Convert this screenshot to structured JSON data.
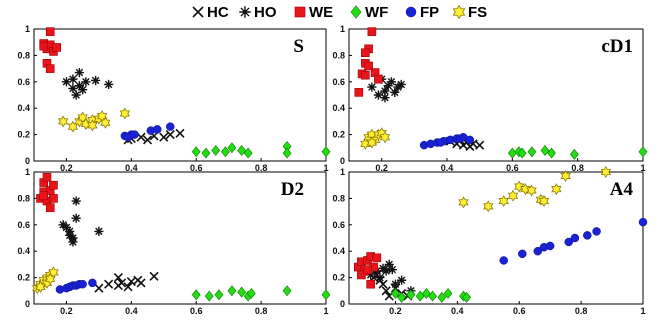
{
  "legend": [
    {
      "label": "HC",
      "marker": "x",
      "color": "#000000"
    },
    {
      "label": "HO",
      "marker": "asterisk",
      "color": "#000000"
    },
    {
      "label": "WE",
      "marker": "square",
      "color": "#e8141b"
    },
    {
      "label": "WF",
      "marker": "diamond",
      "color": "#22dd11"
    },
    {
      "label": "FP",
      "marker": "circle",
      "color": "#1a22d6"
    },
    {
      "label": "FS",
      "marker": "star",
      "color": "#ffee33"
    }
  ],
  "chart_data": [
    {
      "type": "scatter",
      "title": "S",
      "xlim": [
        0.1,
        1
      ],
      "ylim": [
        0,
        1
      ],
      "xticks": [
        "0.2",
        "0.4",
        "0.6",
        "0.8",
        "1"
      ],
      "yticks": [
        "0",
        "0.2",
        "0.4",
        "0.6",
        "0.8",
        "1"
      ],
      "series": [
        {
          "name": "HC",
          "points": [
            [
              0.4,
              0.17
            ],
            [
              0.43,
              0.18
            ],
            [
              0.45,
              0.16
            ],
            [
              0.47,
              0.19
            ],
            [
              0.5,
              0.18
            ],
            [
              0.52,
              0.2
            ],
            [
              0.55,
              0.21
            ],
            [
              0.39,
              0.16
            ]
          ]
        },
        {
          "name": "HO",
          "points": [
            [
              0.2,
              0.6
            ],
            [
              0.22,
              0.55
            ],
            [
              0.23,
              0.5
            ],
            [
              0.24,
              0.57
            ],
            [
              0.24,
              0.67
            ],
            [
              0.26,
              0.6
            ],
            [
              0.29,
              0.61
            ],
            [
              0.33,
              0.58
            ],
            [
              0.22,
              0.62
            ],
            [
              0.25,
              0.54
            ]
          ]
        },
        {
          "name": "WE",
          "points": [
            [
              0.15,
              0.98
            ],
            [
              0.13,
              0.89
            ],
            [
              0.14,
              0.85
            ],
            [
              0.15,
              0.88
            ],
            [
              0.16,
              0.83
            ],
            [
              0.17,
              0.86
            ],
            [
              0.14,
              0.74
            ],
            [
              0.15,
              0.7
            ],
            [
              0.13,
              0.87
            ]
          ]
        },
        {
          "name": "WF",
          "points": [
            [
              0.6,
              0.07
            ],
            [
              0.63,
              0.06
            ],
            [
              0.66,
              0.08
            ],
            [
              0.69,
              0.07
            ],
            [
              0.71,
              0.1
            ],
            [
              0.74,
              0.08
            ],
            [
              0.76,
              0.06
            ],
            [
              0.88,
              0.11
            ],
            [
              0.88,
              0.06
            ],
            [
              1.0,
              0.07
            ]
          ]
        },
        {
          "name": "FP",
          "points": [
            [
              0.38,
              0.19
            ],
            [
              0.4,
              0.2
            ],
            [
              0.41,
              0.2
            ],
            [
              0.46,
              0.23
            ],
            [
              0.48,
              0.24
            ],
            [
              0.52,
              0.26
            ],
            [
              0.39,
              0.18
            ]
          ]
        },
        {
          "name": "FS",
          "points": [
            [
              0.19,
              0.3
            ],
            [
              0.22,
              0.26
            ],
            [
              0.24,
              0.3
            ],
            [
              0.25,
              0.33
            ],
            [
              0.26,
              0.28
            ],
            [
              0.28,
              0.31
            ],
            [
              0.3,
              0.32
            ],
            [
              0.31,
              0.34
            ],
            [
              0.32,
              0.29
            ],
            [
              0.38,
              0.36
            ],
            [
              0.28,
              0.27
            ]
          ]
        }
      ]
    },
    {
      "type": "scatter",
      "title": "cD1",
      "xlim": [
        0.1,
        1
      ],
      "ylim": [
        0,
        1
      ],
      "xticks": [
        "0.2",
        "0.4",
        "0.6",
        "0.8",
        "1"
      ],
      "yticks": [
        "0",
        "0.2",
        "0.4",
        "0.6",
        "0.8",
        "1"
      ],
      "series": [
        {
          "name": "HC",
          "points": [
            [
              0.41,
              0.15
            ],
            [
              0.43,
              0.13
            ],
            [
              0.44,
              0.16
            ],
            [
              0.45,
              0.12
            ],
            [
              0.46,
              0.14
            ],
            [
              0.48,
              0.13
            ],
            [
              0.5,
              0.12
            ],
            [
              0.47,
              0.11
            ]
          ]
        },
        {
          "name": "HO",
          "points": [
            [
              0.17,
              0.56
            ],
            [
              0.19,
              0.5
            ],
            [
              0.2,
              0.62
            ],
            [
              0.21,
              0.53
            ],
            [
              0.22,
              0.57
            ],
            [
              0.23,
              0.6
            ],
            [
              0.24,
              0.52
            ],
            [
              0.25,
              0.56
            ],
            [
              0.26,
              0.58
            ],
            [
              0.21,
              0.48
            ]
          ]
        },
        {
          "name": "WE",
          "points": [
            [
              0.13,
              0.52
            ],
            [
              0.14,
              0.66
            ],
            [
              0.15,
              0.65
            ],
            [
              0.15,
              0.74
            ],
            [
              0.16,
              0.85
            ],
            [
              0.17,
              0.98
            ],
            [
              0.15,
              0.82
            ],
            [
              0.16,
              0.72
            ],
            [
              0.18,
              0.67
            ],
            [
              0.19,
              0.62
            ]
          ]
        },
        {
          "name": "WF",
          "points": [
            [
              0.6,
              0.06
            ],
            [
              0.62,
              0.07
            ],
            [
              0.63,
              0.06
            ],
            [
              0.66,
              0.07
            ],
            [
              0.7,
              0.08
            ],
            [
              0.72,
              0.06
            ],
            [
              0.79,
              0.05
            ],
            [
              1.0,
              0.07
            ]
          ]
        },
        {
          "name": "FP",
          "points": [
            [
              0.33,
              0.12
            ],
            [
              0.35,
              0.13
            ],
            [
              0.37,
              0.14
            ],
            [
              0.39,
              0.15
            ],
            [
              0.41,
              0.16
            ],
            [
              0.43,
              0.17
            ],
            [
              0.44,
              0.17
            ],
            [
              0.45,
              0.18
            ],
            [
              0.47,
              0.16
            ],
            [
              0.38,
              0.14
            ]
          ]
        },
        {
          "name": "FS",
          "points": [
            [
              0.15,
              0.13
            ],
            [
              0.16,
              0.18
            ],
            [
              0.17,
              0.2
            ],
            [
              0.18,
              0.16
            ],
            [
              0.19,
              0.2
            ],
            [
              0.2,
              0.21
            ],
            [
              0.21,
              0.18
            ],
            [
              0.17,
              0.14
            ]
          ]
        }
      ]
    },
    {
      "type": "scatter",
      "title": "D2",
      "xlim": [
        0.1,
        1
      ],
      "ylim": [
        0,
        1
      ],
      "xticks": [
        "0.2",
        "0.4",
        "0.6",
        "0.8",
        "1"
      ],
      "yticks": [
        "0",
        "0.2",
        "0.4",
        "0.6",
        "0.8",
        "1"
      ],
      "series": [
        {
          "name": "HC",
          "points": [
            [
              0.3,
              0.12
            ],
            [
              0.33,
              0.15
            ],
            [
              0.36,
              0.2
            ],
            [
              0.37,
              0.16
            ],
            [
              0.39,
              0.13
            ],
            [
              0.4,
              0.17
            ],
            [
              0.42,
              0.18
            ],
            [
              0.43,
              0.16
            ],
            [
              0.47,
              0.21
            ],
            [
              0.36,
              0.14
            ]
          ]
        },
        {
          "name": "HO",
          "points": [
            [
              0.19,
              0.6
            ],
            [
              0.2,
              0.58
            ],
            [
              0.21,
              0.55
            ],
            [
              0.22,
              0.5
            ],
            [
              0.23,
              0.65
            ],
            [
              0.23,
              0.78
            ],
            [
              0.22,
              0.47
            ],
            [
              0.3,
              0.55
            ],
            [
              0.21,
              0.52
            ]
          ]
        },
        {
          "name": "WE",
          "points": [
            [
              0.12,
              0.8
            ],
            [
              0.13,
              0.92
            ],
            [
              0.13,
              0.85
            ],
            [
              0.14,
              0.78
            ],
            [
              0.14,
              0.96
            ],
            [
              0.15,
              0.86
            ],
            [
              0.16,
              0.8
            ],
            [
              0.15,
              0.73
            ],
            [
              0.16,
              0.9
            ],
            [
              0.13,
              0.82
            ]
          ]
        },
        {
          "name": "WF",
          "points": [
            [
              0.6,
              0.07
            ],
            [
              0.64,
              0.06
            ],
            [
              0.67,
              0.07
            ],
            [
              0.71,
              0.1
            ],
            [
              0.74,
              0.09
            ],
            [
              0.76,
              0.06
            ],
            [
              0.88,
              0.1
            ],
            [
              1.0,
              0.07
            ],
            [
              0.77,
              0.08
            ]
          ]
        },
        {
          "name": "FP",
          "points": [
            [
              0.18,
              0.11
            ],
            [
              0.2,
              0.12
            ],
            [
              0.21,
              0.13
            ],
            [
              0.22,
              0.14
            ],
            [
              0.23,
              0.14
            ],
            [
              0.24,
              0.15
            ],
            [
              0.25,
              0.15
            ],
            [
              0.28,
              0.16
            ]
          ]
        },
        {
          "name": "FS",
          "points": [
            [
              0.11,
              0.12
            ],
            [
              0.12,
              0.15
            ],
            [
              0.13,
              0.18
            ],
            [
              0.14,
              0.2
            ],
            [
              0.15,
              0.22
            ],
            [
              0.16,
              0.24
            ],
            [
              0.14,
              0.16
            ],
            [
              0.12,
              0.13
            ],
            [
              0.15,
              0.19
            ]
          ]
        }
      ]
    },
    {
      "type": "scatter",
      "title": "A4",
      "xlim": [
        0.05,
        1
      ],
      "ylim": [
        0,
        1
      ],
      "xticks": [
        "0.2",
        "0.4",
        "0.6",
        "0.8",
        "1"
      ],
      "yticks": [
        "0",
        "0.2",
        "0.4",
        "0.6",
        "0.8",
        "1"
      ],
      "series": [
        {
          "name": "HC",
          "points": [
            [
              0.13,
              0.2
            ],
            [
              0.15,
              0.18
            ],
            [
              0.16,
              0.15
            ],
            [
              0.17,
              0.1
            ],
            [
              0.18,
              0.06
            ],
            [
              0.22,
              0.08
            ],
            [
              0.2,
              0.12
            ],
            [
              0.14,
              0.22
            ],
            [
              0.24,
              0.06
            ]
          ]
        },
        {
          "name": "HO",
          "points": [
            [
              0.12,
              0.22
            ],
            [
              0.14,
              0.25
            ],
            [
              0.15,
              0.2
            ],
            [
              0.16,
              0.27
            ],
            [
              0.17,
              0.25
            ],
            [
              0.18,
              0.3
            ],
            [
              0.19,
              0.26
            ],
            [
              0.22,
              0.18
            ],
            [
              0.2,
              0.15
            ],
            [
              0.25,
              0.1
            ]
          ]
        },
        {
          "name": "WE",
          "points": [
            [
              0.08,
              0.28
            ],
            [
              0.09,
              0.32
            ],
            [
              0.1,
              0.25
            ],
            [
              0.11,
              0.33
            ],
            [
              0.12,
              0.36
            ],
            [
              0.13,
              0.28
            ],
            [
              0.09,
              0.22
            ],
            [
              0.11,
              0.26
            ],
            [
              0.12,
              0.15
            ],
            [
              0.14,
              0.35
            ]
          ]
        },
        {
          "name": "WF",
          "points": [
            [
              0.2,
              0.08
            ],
            [
              0.22,
              0.05
            ],
            [
              0.25,
              0.07
            ],
            [
              0.28,
              0.06
            ],
            [
              0.3,
              0.08
            ],
            [
              0.32,
              0.06
            ],
            [
              0.35,
              0.05
            ],
            [
              0.37,
              0.08
            ],
            [
              0.42,
              0.06
            ],
            [
              0.43,
              0.05
            ]
          ]
        },
        {
          "name": "FP",
          "points": [
            [
              0.55,
              0.33
            ],
            [
              0.61,
              0.38
            ],
            [
              0.66,
              0.4
            ],
            [
              0.68,
              0.43
            ],
            [
              0.7,
              0.44
            ],
            [
              0.76,
              0.47
            ],
            [
              0.78,
              0.5
            ],
            [
              0.82,
              0.52
            ],
            [
              0.85,
              0.55
            ],
            [
              1.0,
              0.62
            ]
          ]
        },
        {
          "name": "FS",
          "points": [
            [
              0.42,
              0.77
            ],
            [
              0.5,
              0.74
            ],
            [
              0.55,
              0.78
            ],
            [
              0.58,
              0.82
            ],
            [
              0.6,
              0.89
            ],
            [
              0.62,
              0.87
            ],
            [
              0.67,
              0.79
            ],
            [
              0.68,
              0.78
            ],
            [
              0.72,
              0.87
            ],
            [
              0.75,
              0.97
            ],
            [
              0.88,
              1.0
            ],
            [
              0.64,
              0.86
            ]
          ]
        }
      ]
    }
  ]
}
